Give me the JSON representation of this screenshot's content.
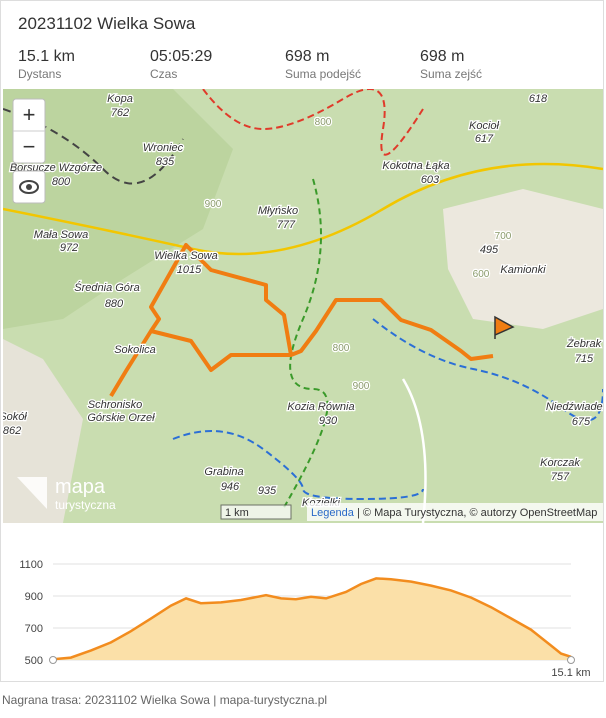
{
  "header": {
    "title": "20231102 Wielka Sowa"
  },
  "stats": [
    {
      "value": "15.1 km",
      "label": "Dystans"
    },
    {
      "value": "05:05:29",
      "label": "Czas"
    },
    {
      "value": "698 m",
      "label": "Suma podejść"
    },
    {
      "value": "698 m",
      "label": "Suma zejść"
    }
  ],
  "map": {
    "controls": [
      "+",
      "−"
    ],
    "labels": [
      "Kopa",
      "762",
      "Wroniec",
      "835",
      "Borsucze Wzgórze",
      "800",
      "Mała Sowa",
      "972",
      "Średnia Góra",
      "880",
      "Wielka Sowa",
      "1015",
      "Młyńsko",
      "777",
      "Kokotna Łąka",
      "603",
      "Kocioł",
      "617",
      "618",
      "495",
      "Kamionki",
      "Sokolica",
      "Schronisko",
      "Górskie Orzeł",
      "Sokół",
      "862",
      "Kozia Równia",
      "930",
      "Grabina",
      "946",
      "935",
      "Korczak",
      "757",
      "Niedźwiadek",
      "675",
      "Żebrak",
      "715",
      "Kozielki",
      "900",
      "800",
      "600",
      "700",
      "800",
      "900"
    ],
    "logo": [
      "mapa",
      "turystyczna"
    ],
    "scale": "1 km",
    "attribution": {
      "legend": "Legenda",
      "text": "| © Mapa Turystyczna, © autorzy OpenStreetMap"
    }
  },
  "chart_data": {
    "type": "area",
    "x": [
      0,
      0.52,
      1.11,
      1.69,
      2.27,
      2.86,
      3.44,
      3.88,
      4.31,
      4.9,
      5.48,
      6.21,
      6.65,
      7.08,
      7.52,
      7.96,
      8.54,
      8.98,
      9.42,
      9.85,
      10.44,
      11.02,
      11.6,
      12.19,
      12.77,
      13.35,
      13.93,
      14.52,
      14.81,
      15.1
    ],
    "values": [
      505,
      515,
      560,
      610,
      680,
      760,
      840,
      885,
      855,
      860,
      875,
      905,
      885,
      880,
      895,
      885,
      925,
      975,
      1010,
      1005,
      990,
      965,
      935,
      890,
      830,
      760,
      690,
      590,
      540,
      520
    ],
    "color": "#f28c1e",
    "xlim": [
      0,
      15.1
    ],
    "xticks": [
      {
        "value": 15.1,
        "label": "15.1 km"
      }
    ],
    "ylim": [
      500,
      1100
    ],
    "yticks": [
      500,
      700,
      900,
      1100
    ],
    "grid": true
  },
  "footer": {
    "text": "Nagrana trasa: 20231102 Wielka Sowa | mapa-turystyczna.pl"
  }
}
